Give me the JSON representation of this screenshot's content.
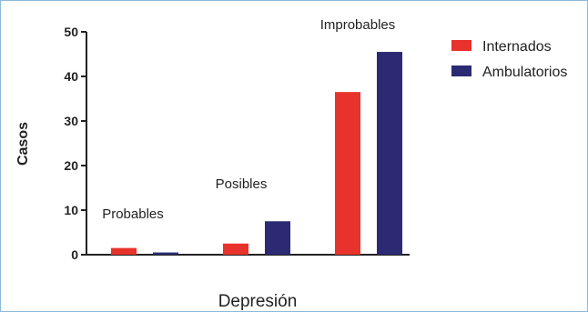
{
  "chart_data": {
    "type": "bar",
    "xlabel": "Depresión",
    "ylabel": "Casos",
    "ylim": [
      0,
      50
    ],
    "yticks": [
      0,
      10,
      20,
      30,
      40,
      50
    ],
    "categories": [
      "Probables",
      "Posibles",
      "Improbables"
    ],
    "series": [
      {
        "name": "Internados",
        "color": "#e8322c",
        "values": [
          1.5,
          2.5,
          36.5
        ]
      },
      {
        "name": "Ambulatorios",
        "color": "#2b2a73",
        "values": [
          0.5,
          7.5,
          45.5
        ]
      }
    ],
    "legend_position": "top-right"
  }
}
